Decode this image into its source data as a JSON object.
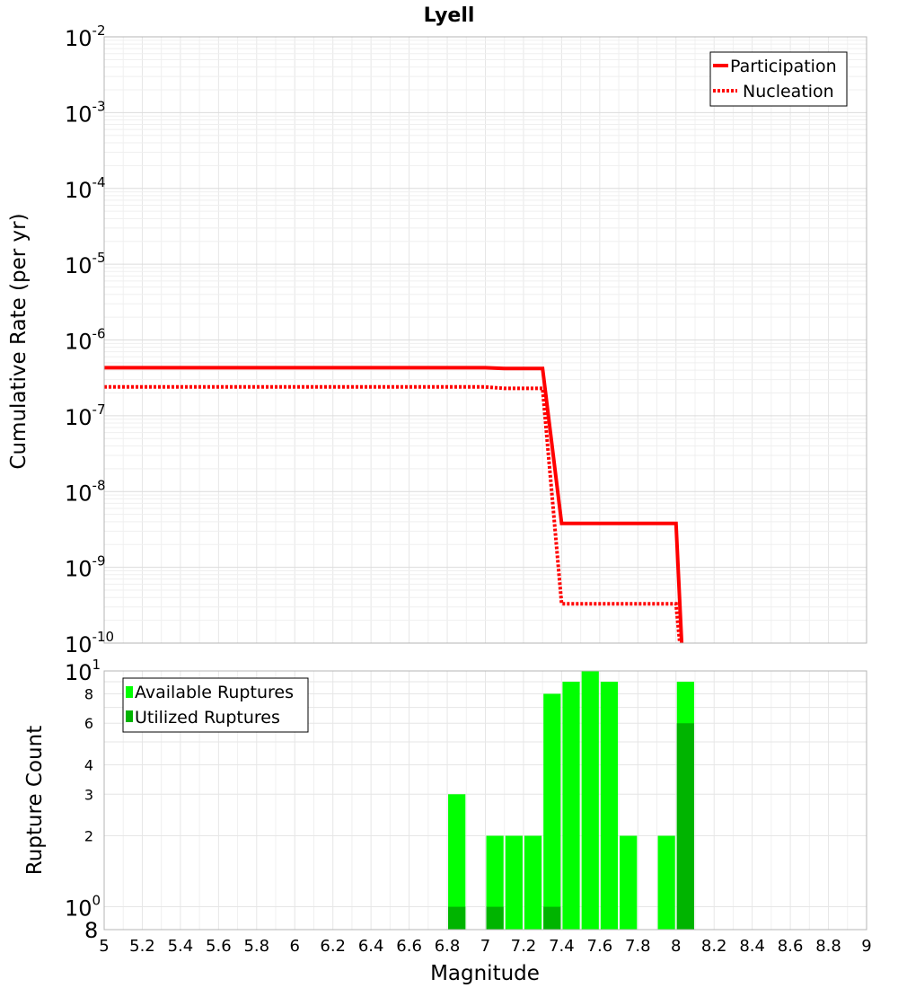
{
  "chart_data": [
    {
      "type": "line",
      "title": "Lyell",
      "xlabel": "",
      "ylabel": "Cumulative Rate (per yr)",
      "xlim": [
        5,
        9
      ],
      "ylim": [
        1e-10,
        0.01
      ],
      "yscale": "log",
      "grid": true,
      "legend_position": "top-right",
      "yticks": [
        {
          "base": "10",
          "exp": "-2"
        },
        {
          "base": "10",
          "exp": "-3"
        },
        {
          "base": "10",
          "exp": "-4"
        },
        {
          "base": "10",
          "exp": "-5"
        },
        {
          "base": "10",
          "exp": "-6"
        },
        {
          "base": "10",
          "exp": "-7"
        },
        {
          "base": "10",
          "exp": "-8"
        },
        {
          "base": "10",
          "exp": "-9"
        },
        {
          "base": "10",
          "exp": "-10"
        }
      ],
      "series": [
        {
          "name": "Participation",
          "style": "solid",
          "color": "#ff0000",
          "x": [
            5.0,
            7.0,
            7.1,
            7.3,
            7.4,
            7.5,
            7.9,
            8.0,
            8.03
          ],
          "y": [
            4.3e-07,
            4.3e-07,
            4.2e-07,
            4.2e-07,
            3.8e-09,
            3.8e-09,
            3.8e-09,
            3.8e-09,
            1e-10
          ]
        },
        {
          "name": "Nucleation",
          "style": "dotted",
          "color": "#ff0000",
          "x": [
            5.0,
            7.0,
            7.1,
            7.3,
            7.4,
            7.5,
            7.9,
            8.0,
            8.02
          ],
          "y": [
            2.4e-07,
            2.4e-07,
            2.3e-07,
            2.3e-07,
            3.3e-10,
            3.3e-10,
            3.3e-10,
            3.3e-10,
            1e-10
          ]
        }
      ]
    },
    {
      "type": "bar",
      "title": "",
      "xlabel": "Magnitude",
      "ylabel": "Rupture Count",
      "xlim": [
        5,
        9
      ],
      "ylim": [
        0.8,
        10
      ],
      "yscale": "log",
      "grid": true,
      "legend_position": "top-left",
      "bar_width": 0.1,
      "xticks": [
        "5",
        "5.2",
        "5.4",
        "5.6",
        "5.8",
        "6",
        "6.2",
        "6.4",
        "6.6",
        "6.8",
        "7",
        "7.2",
        "7.4",
        "7.6",
        "7.8",
        "8",
        "8.2",
        "8.4",
        "8.6",
        "8.8",
        "9"
      ],
      "yticks_small": [
        {
          "label": "8",
          "value": 8
        },
        {
          "label": "6",
          "value": 6
        },
        {
          "label": "4",
          "value": 4
        },
        {
          "label": "3",
          "value": 3
        },
        {
          "label": "2",
          "value": 2
        }
      ],
      "yticks_big": [
        {
          "base": "10",
          "exp": "1",
          "value": 10
        },
        {
          "base": "10",
          "exp": "0",
          "value": 1
        },
        {
          "base": "8",
          "exp": "",
          "value": 0.8
        }
      ],
      "series": [
        {
          "name": "Available Ruptures",
          "color": "#00ff00",
          "x": [
            6.85,
            7.05,
            7.15,
            7.25,
            7.35,
            7.45,
            7.55,
            7.65,
            7.75,
            7.95,
            8.05
          ],
          "values": [
            3,
            2,
            2,
            2,
            8,
            9,
            10,
            9,
            2,
            2,
            9
          ]
        },
        {
          "name": "Utilized Ruptures",
          "color": "#00b400",
          "x": [
            6.85,
            7.05,
            7.35,
            8.05
          ],
          "values": [
            1,
            1,
            1,
            6
          ]
        }
      ]
    }
  ]
}
